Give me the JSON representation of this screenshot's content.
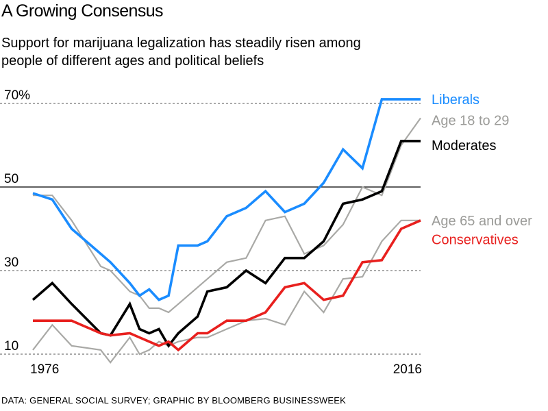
{
  "title": "A Growing Consensus",
  "subtitle": "Support for marijuana legalization has steadily risen among people of different ages and political beliefs",
  "source": "DATA: GENERAL SOCIAL SURVEY; GRAPHIC BY BLOOMBERG BUSINESSWEEK",
  "chart_data": {
    "type": "line",
    "y_ticks": [
      "70%",
      "50",
      "30",
      "10"
    ],
    "y_tick_values": [
      70,
      50,
      30,
      10
    ],
    "x_tick_labels": [
      "1976",
      "2016"
    ],
    "ylim": [
      10,
      70
    ],
    "grid": "dashed at 10, 30, 70; solid at 50",
    "legend": "direct labels at right end of lines",
    "x": [
      1976,
      1978,
      1980,
      1983,
      1984,
      1986,
      1987,
      1988,
      1989,
      1990,
      1991,
      1993,
      1994,
      1996,
      1998,
      2000,
      2002,
      2004,
      2006,
      2008,
      2010,
      2012,
      2014,
      2016
    ],
    "series": [
      {
        "name": "Liberals",
        "color": "#1a8cff",
        "label_y": 71,
        "values": [
          48.5,
          47,
          40,
          34,
          32,
          27,
          24,
          25.5,
          23,
          24,
          36,
          36,
          37,
          43,
          45,
          49,
          44,
          46,
          51,
          59,
          54.5,
          71,
          71,
          71
        ]
      },
      {
        "name": "Age 18 to 29",
        "color": "#a9a9a6",
        "label_y": 66,
        "values": [
          48,
          48,
          42,
          31,
          30,
          25,
          24,
          21,
          21,
          20,
          22,
          26,
          28,
          32,
          33,
          42,
          43,
          34,
          36,
          41,
          50,
          48,
          60,
          66.5
        ]
      },
      {
        "name": "Moderates",
        "color": "#000000",
        "label_y": 60,
        "values": [
          23,
          27,
          22,
          15,
          14.5,
          22,
          16,
          15,
          16,
          12,
          15,
          19,
          25,
          26,
          30,
          27,
          33,
          33,
          37,
          46,
          47,
          49,
          61,
          61
        ]
      },
      {
        "name": "Age 65 and over",
        "color": "#a9a9a6",
        "label_y": 42,
        "values": [
          11,
          17,
          12,
          11,
          8,
          14,
          10,
          11,
          13,
          12,
          13,
          14,
          14,
          16,
          18,
          18.5,
          17,
          25,
          20,
          28,
          28.5,
          37,
          42,
          42
        ]
      },
      {
        "name": "Conservatives",
        "color": "#e8201e",
        "label_y": 37.5,
        "values": [
          18,
          18,
          18,
          15,
          14.5,
          15,
          14,
          13,
          12,
          13,
          11,
          15,
          15,
          18,
          18,
          20,
          26,
          27,
          23,
          24,
          32,
          32.5,
          40,
          42
        ]
      }
    ]
  }
}
